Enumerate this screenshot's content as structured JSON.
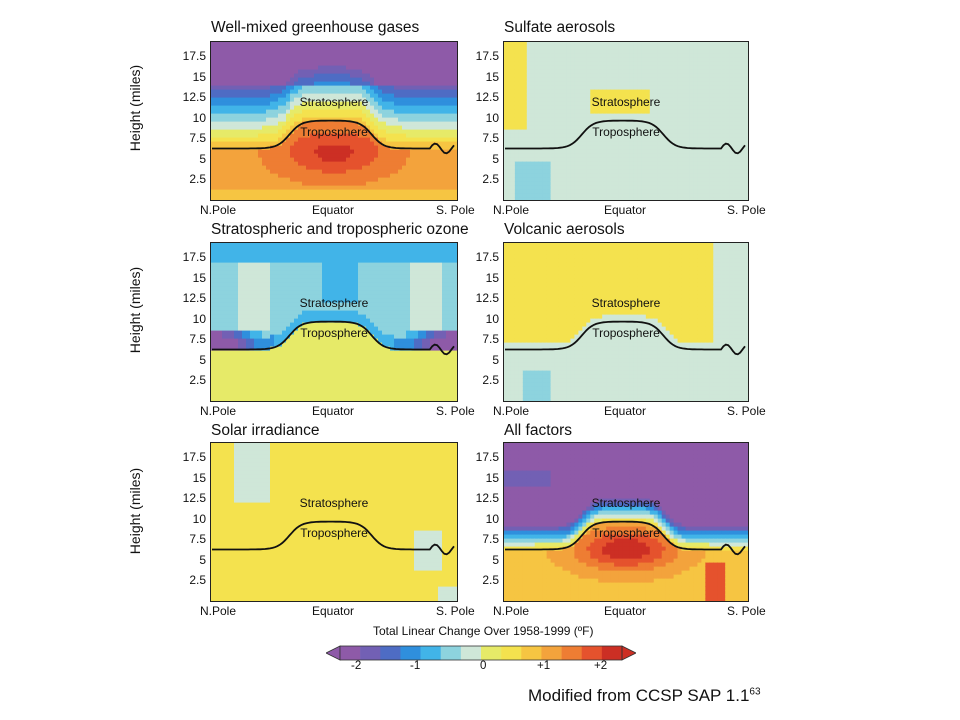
{
  "chart_data": {
    "type": "heatmap",
    "shared": {
      "ylabel": "Height (miles)",
      "y_ticks": [
        "2.5",
        "5",
        "7.5",
        "10",
        "12.5",
        "15",
        "17.5"
      ],
      "x_ticks": [
        "N.Pole",
        "Equator",
        "S. Pole"
      ],
      "region_labels": [
        "Stratosphere",
        "Troposphere"
      ]
    },
    "panels": [
      {
        "title": "Well-mixed greenhouse gases",
        "description": "troposphere warms strongly (up to +2 °F near 5–10 mi over the tropics); stratosphere cools (to about -2 °F above 15 mi)"
      },
      {
        "title": "Sulfate aerosols",
        "description": "slight cooling throughout (about -0.5 °F) with small warm patch in the tropical lower stratosphere"
      },
      {
        "title": "Stratospheric and tropospheric ozone",
        "description": "lower stratosphere cools strongly near poles (-2 °F); troposphere slightly warm"
      },
      {
        "title": "Volcanic aerosols",
        "description": "small changes: slight warming in stratosphere, slight cooling in troposphere"
      },
      {
        "title": "Solar irradiance",
        "description": "slight warming (about +0.5 °F) nearly everywhere"
      },
      {
        "title": "All factors",
        "description": "troposphere warms (up to +2 °F in the tropics); stratosphere cools strongly (-2 °F above 12 mi)"
      }
    ],
    "colorbar": {
      "title": "Total Linear Change Over 1958-1999 (ºF)",
      "ticks": [
        "-2",
        "-1",
        "0",
        "+1",
        "+2"
      ],
      "colors": [
        "#8e5aa8",
        "#7260b4",
        "#4e6cc4",
        "#2f8fdd",
        "#41b4e8",
        "#8dd3de",
        "#cfe7d8",
        "#e6ea68",
        "#f4e24e",
        "#f6c542",
        "#f3a33c",
        "#ee7d33",
        "#e5522d",
        "#cc2f24"
      ]
    }
  },
  "credit": {
    "text": "Modified from CCSP SAP 1.1",
    "sup": "63"
  }
}
